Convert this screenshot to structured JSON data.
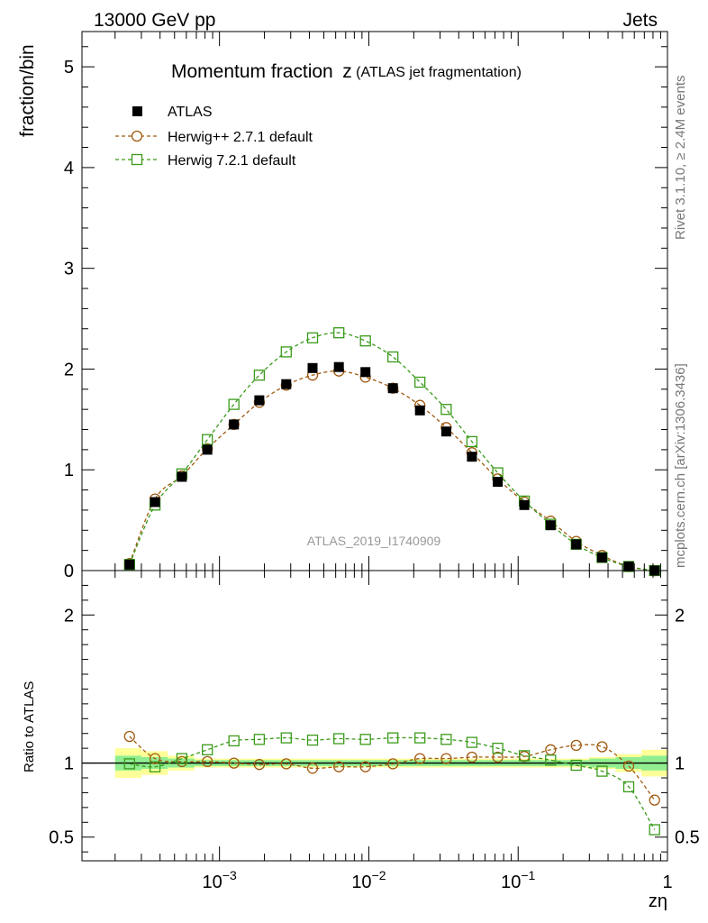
{
  "header": {
    "energy_label": "13000 GeV pp",
    "process_label": "Jets"
  },
  "side_labels": {
    "rivet": "Rivet 3.1.10, ≥ 2.4M events",
    "source": "mcplots.cern.ch [arXiv:1306.3436]"
  },
  "chart_data": {
    "type": "line",
    "title": "Momentum fraction",
    "title_symbol": "z",
    "title_note": "(ATLAS jet fragmentation)",
    "analysis_label": "ATLAS_2019_I1740909",
    "xlabel": "zη",
    "x_scale": "log",
    "xlim": [
      0.00012,
      1.0
    ],
    "x_tick_labels": [
      {
        "x": 0.001,
        "base": "10",
        "exp": "−3"
      },
      {
        "x": 0.01,
        "base": "10",
        "exp": "−2"
      },
      {
        "x": 0.1,
        "base": "10",
        "exp": "−1"
      },
      {
        "x": 1.0,
        "base": "1",
        "exp": ""
      }
    ],
    "grid": false,
    "legend_position": "top-left",
    "main": {
      "ylabel": "fraction/bin",
      "ylim": [
        0,
        5.35
      ],
      "y_ticks": [
        0,
        1,
        2,
        3,
        4,
        5
      ],
      "y_tick_labels": [
        "0",
        "1",
        "2",
        "3",
        "4",
        "5"
      ]
    },
    "ratio": {
      "ylabel": "Ratio to ATLAS",
      "ylim": [
        0.34,
        2.3
      ],
      "y_ticks": [
        0.5,
        1,
        2
      ],
      "y_tick_labels": [
        "0.5",
        "1",
        "2"
      ]
    },
    "x": [
      0.00025,
      0.00037,
      0.00056,
      0.00083,
      0.00125,
      0.00185,
      0.0028,
      0.0042,
      0.0063,
      0.0095,
      0.0145,
      0.022,
      0.033,
      0.049,
      0.073,
      0.11,
      0.165,
      0.245,
      0.365,
      0.55,
      0.82
    ],
    "x_edges": [
      0.0002,
      0.0003,
      0.00045,
      0.00068,
      0.001,
      0.0015,
      0.00225,
      0.0034,
      0.0051,
      0.0077,
      0.0115,
      0.0175,
      0.026,
      0.039,
      0.059,
      0.088,
      0.132,
      0.2,
      0.3,
      0.45,
      0.67,
      1.0
    ],
    "series": [
      {
        "name": "ATLAS",
        "style": "data",
        "color": "#000000",
        "values": [
          0.06,
          0.68,
          0.93,
          1.2,
          1.45,
          1.69,
          1.85,
          2.01,
          2.02,
          1.97,
          1.81,
          1.59,
          1.38,
          1.13,
          0.88,
          0.65,
          0.45,
          0.26,
          0.13,
          0.04,
          0.0
        ],
        "band_inner": [
          0.05,
          0.04,
          0.03,
          0.02,
          0.02,
          0.02,
          0.02,
          0.02,
          0.02,
          0.02,
          0.02,
          0.02,
          0.02,
          0.02,
          0.02,
          0.02,
          0.02,
          0.02,
          0.03,
          0.04,
          0.05
        ],
        "band_outer": [
          0.1,
          0.08,
          0.05,
          0.03,
          0.03,
          0.03,
          0.03,
          0.03,
          0.03,
          0.03,
          0.03,
          0.03,
          0.03,
          0.03,
          0.03,
          0.03,
          0.03,
          0.03,
          0.04,
          0.06,
          0.09
        ]
      },
      {
        "name": "Herwig++ 2.7.1 default",
        "style": "circle",
        "color": "#a05a10",
        "values": [
          0.07,
          0.71,
          0.94,
          1.21,
          1.45,
          1.67,
          1.84,
          1.94,
          1.98,
          1.92,
          1.81,
          1.64,
          1.42,
          1.17,
          0.91,
          0.68,
          0.49,
          0.29,
          0.15,
          0.04,
          0.0
        ],
        "ratio": [
          1.18,
          1.03,
          1.01,
          1.01,
          1.0,
          0.99,
          0.995,
          0.965,
          0.975,
          0.975,
          0.995,
          1.03,
          1.03,
          1.04,
          1.04,
          1.045,
          1.09,
          1.12,
          1.11,
          0.98,
          0.75
        ]
      },
      {
        "name": "Herwig 7.2.1 default",
        "style": "square",
        "color": "#3a9a1a",
        "values": [
          0.06,
          0.65,
          0.96,
          1.3,
          1.65,
          1.94,
          2.17,
          2.31,
          2.36,
          2.28,
          2.12,
          1.87,
          1.6,
          1.28,
          0.97,
          0.69,
          0.46,
          0.26,
          0.13,
          0.04,
          0.0
        ],
        "ratio": [
          0.995,
          0.975,
          1.03,
          1.09,
          1.15,
          1.16,
          1.17,
          1.155,
          1.165,
          1.16,
          1.17,
          1.17,
          1.16,
          1.14,
          1.1,
          1.05,
          1.02,
          0.985,
          0.945,
          0.84,
          0.55
        ]
      }
    ]
  }
}
